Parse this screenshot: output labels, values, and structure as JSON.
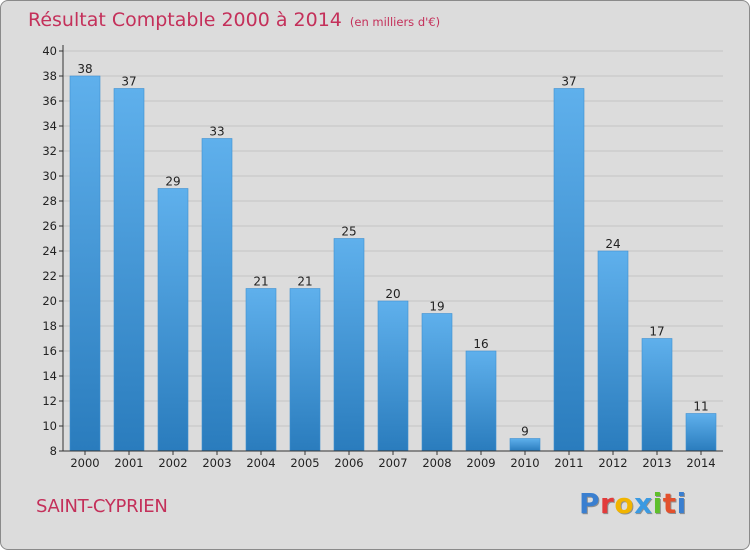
{
  "header": {
    "title": "Résultat Comptable 2000 à 2014",
    "subtitle": "(en milliers d'€)"
  },
  "footer": {
    "commune": "SAINT-CYPRIEN",
    "brand": "Proxiti",
    "brand_colors": [
      "#3a7fd0",
      "#e23b3b",
      "#f1b400",
      "#3b9ae2",
      "#5fbf2a",
      "#e2502d",
      "#3a7fd0"
    ]
  },
  "colors": {
    "bar_top": "#5fb0ec",
    "bar_bottom": "#2a7cbd",
    "background": "#dcdcdc",
    "axis": "#333333"
  },
  "chart_data": {
    "type": "bar",
    "title": "Résultat Comptable 2000 à 2014",
    "categories": [
      "2000",
      "2001",
      "2002",
      "2003",
      "2004",
      "2005",
      "2006",
      "2007",
      "2008",
      "2009",
      "2010",
      "2011",
      "2012",
      "2013",
      "2014"
    ],
    "values": [
      38,
      37,
      29,
      33,
      21,
      21,
      25,
      20,
      19,
      16,
      9,
      37,
      24,
      17,
      11
    ],
    "ylim": [
      8,
      40
    ],
    "yticks": [
      8,
      10,
      12,
      14,
      16,
      18,
      20,
      22,
      24,
      26,
      28,
      30,
      32,
      34,
      36,
      38,
      40
    ],
    "grid": true,
    "legend": "none"
  }
}
